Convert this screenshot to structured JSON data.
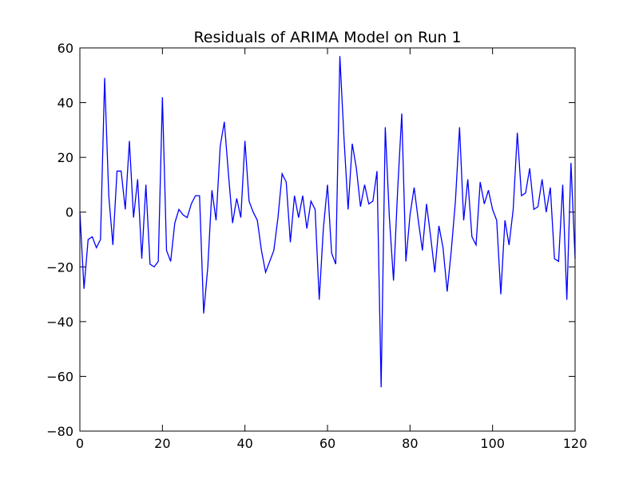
{
  "chart_data": {
    "type": "line",
    "title": "Residuals of ARIMA Model on Run 1",
    "xlabel": "",
    "ylabel": "",
    "xlim": [
      0,
      120
    ],
    "ylim": [
      -80,
      60
    ],
    "xticks": [
      0,
      20,
      40,
      60,
      80,
      100,
      120
    ],
    "yticks": [
      -80,
      -60,
      -40,
      -20,
      0,
      20,
      40,
      60
    ],
    "grid": false,
    "legend": "none",
    "series": [
      {
        "color": "#0000ff",
        "x": [
          0,
          1,
          2,
          3,
          4,
          5,
          6,
          7,
          8,
          9,
          10,
          11,
          12,
          13,
          14,
          15,
          16,
          17,
          18,
          19,
          20,
          21,
          22,
          23,
          24,
          25,
          26,
          27,
          28,
          29,
          30,
          31,
          32,
          33,
          34,
          35,
          36,
          37,
          38,
          39,
          40,
          41,
          42,
          43,
          44,
          45,
          46,
          47,
          48,
          49,
          50,
          51,
          52,
          53,
          54,
          55,
          56,
          57,
          58,
          59,
          60,
          61,
          62,
          63,
          64,
          65,
          66,
          67,
          68,
          69,
          70,
          71,
          72,
          73,
          74,
          75,
          76,
          77,
          78,
          79,
          80,
          81,
          82,
          83,
          84,
          85,
          86,
          87,
          88,
          89,
          90,
          91,
          92,
          93,
          94,
          95,
          96,
          97,
          98,
          99,
          100,
          101,
          102,
          103,
          104,
          105,
          106,
          107,
          108,
          109,
          110,
          111,
          112,
          113,
          114,
          115,
          116,
          117,
          118,
          119,
          120
        ],
        "y": [
          0,
          -28,
          -10,
          -9,
          -13,
          -10,
          49,
          6,
          -12,
          15,
          15,
          1,
          26,
          -2,
          12,
          -17,
          10,
          -19,
          -20,
          -18,
          42,
          -14,
          -18,
          -4,
          1,
          -1,
          -2,
          3,
          6,
          6,
          -37,
          -20,
          8,
          -3,
          24,
          33,
          14,
          -4,
          5,
          -2,
          26,
          4,
          0,
          -3,
          -14,
          -22,
          -18,
          -14,
          -2,
          14,
          11,
          -11,
          6,
          -2,
          6,
          -6,
          4,
          1,
          -32,
          -6,
          10,
          -15,
          -19,
          57,
          27,
          1,
          25,
          16,
          2,
          10,
          3,
          4,
          15,
          -64,
          31,
          -2,
          -25,
          8,
          36,
          -18,
          -1,
          9,
          -3,
          -14,
          3,
          -9,
          -22,
          -5,
          -13,
          -29,
          -14,
          4,
          31,
          -3,
          12,
          -9,
          -12,
          11,
          3,
          8,
          1,
          -3,
          -30,
          -3,
          -12,
          1,
          29,
          6,
          7,
          16,
          1,
          2,
          12,
          0,
          9,
          -17,
          -18,
          10,
          -32,
          18,
          -17
        ]
      }
    ]
  }
}
